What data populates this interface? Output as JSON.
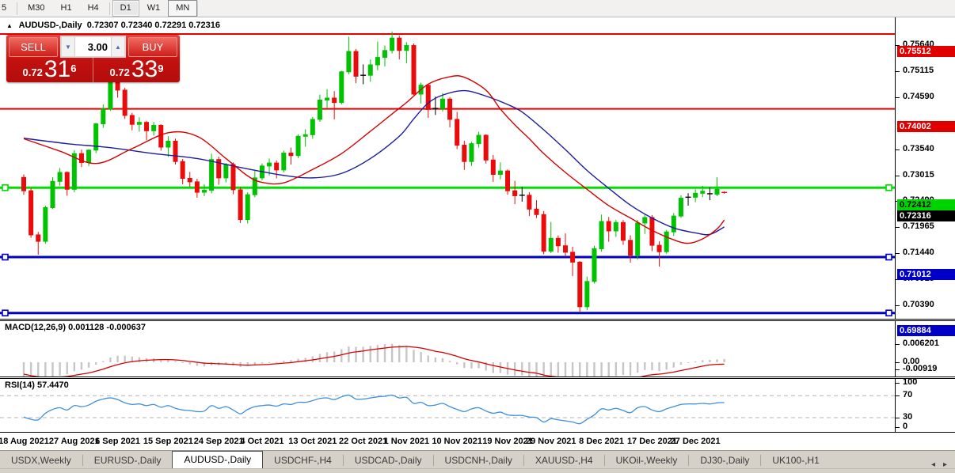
{
  "toolbar": {
    "buttons": [
      "5",
      "M30",
      "H1",
      "H4",
      "D1",
      "W1",
      "MN"
    ],
    "active": "D1",
    "boxed": "MN",
    "separators_after": [
      "5",
      "H4"
    ]
  },
  "chart": {
    "title": {
      "collapse_icon": "▲",
      "symbol": "AUDUSD-,Daily",
      "ohlc": "0.72307 0.72340 0.72291 0.72316"
    },
    "price_axis": {
      "ticks": [
        "0.75640",
        "0.75115",
        "0.74590",
        "0.73540",
        "0.73015",
        "0.72490",
        "0.71965",
        "0.71440",
        "0.70915",
        "0.70390"
      ],
      "badges": [
        {
          "text": "0.75512",
          "value": 0.75512,
          "bg": "#e00000",
          "fg": "#ffffff"
        },
        {
          "text": "0.74002",
          "value": 0.74002,
          "bg": "#e00000",
          "fg": "#ffffff"
        },
        {
          "text": "0.72412",
          "value": 0.72412,
          "bg": "#00d400",
          "fg": "#000000"
        },
        {
          "text": "0.72316",
          "value": 0.72316,
          "bg": "#000000",
          "fg": "#ffffff"
        },
        {
          "text": "0.71012",
          "value": 0.71012,
          "bg": "#0000c8",
          "fg": "#ffffff"
        },
        {
          "text": "0.69884",
          "value": 0.69884,
          "bg": "#0000c8",
          "fg": "#ffffff"
        }
      ]
    }
  },
  "trade": {
    "sell_label": "SELL",
    "buy_label": "BUY",
    "volume": "3.00",
    "spin_down": "▼",
    "spin_up": "▲",
    "sell": {
      "prefix": "0.72",
      "big": "31",
      "sup": "6"
    },
    "buy": {
      "prefix": "0.72",
      "big": "33",
      "sup": "9"
    }
  },
  "macd_panel": {
    "label": "MACD(12,26,9) 0.001128 -0.000637",
    "axis": [
      {
        "label": "0.006201",
        "value": 0.006201
      },
      {
        "label": "0.00",
        "value": 0.0
      },
      {
        "label": "-0.00919",
        "value": -0.00919
      }
    ]
  },
  "rsi_panel": {
    "label": "RSI(14) 57.4470",
    "axis": [
      {
        "label": "100",
        "value": 100
      },
      {
        "label": "70",
        "value": 70
      },
      {
        "label": "30",
        "value": 30
      },
      {
        "label": "0",
        "value": 0
      }
    ],
    "levels": [
      70,
      30
    ]
  },
  "tabs": {
    "items": [
      "USDX,Weekly",
      "EURUSD-,Daily",
      "AUDUSD-,Daily",
      "USDCHF-,H4",
      "USDCAD-,Daily",
      "USDCNH-,Daily",
      "XAUUSD-,H4",
      "UKOil-,Weekly",
      "DJ30-,Daily",
      "UK100-,H1"
    ],
    "active_index": 2,
    "nav_left": "◂",
    "nav_right": "▸"
  },
  "chart_data": {
    "type": "candlestick",
    "symbol": "AUDUSD-",
    "timeframe": "Daily",
    "ylim": [
      0.696,
      0.757
    ],
    "current_bar": {
      "open": 0.72307,
      "high": 0.7234,
      "low": 0.72291,
      "close": 0.72316
    },
    "x_labels": [
      {
        "bar": 0,
        "label": "18 Aug 2021"
      },
      {
        "bar": 7,
        "label": "27 Aug 2021"
      },
      {
        "bar": 13,
        "label": "6 Sep 2021"
      },
      {
        "bar": 20,
        "label": "15 Sep 2021"
      },
      {
        "bar": 27,
        "label": "24 Sep 2021"
      },
      {
        "bar": 33,
        "label": "4 Oct 2021"
      },
      {
        "bar": 40,
        "label": "13 Oct 2021"
      },
      {
        "bar": 47,
        "label": "22 Oct 2021"
      },
      {
        "bar": 53,
        "label": "1 Nov 2021"
      },
      {
        "bar": 60,
        "label": "10 Nov 2021"
      },
      {
        "bar": 67,
        "label": "19 Nov 2021"
      },
      {
        "bar": 73,
        "label": "29 Nov 2021"
      },
      {
        "bar": 80,
        "label": "8 Dec 2021"
      },
      {
        "bar": 87,
        "label": "17 Dec 2021"
      },
      {
        "bar": 93,
        "label": "27 Dec 2021"
      }
    ],
    "hlines": [
      {
        "price": 0.75512,
        "color": "#e60000",
        "width": 2,
        "handles": false
      },
      {
        "price": 0.74002,
        "color": "#e60000",
        "width": 2,
        "handles": false
      },
      {
        "price": 0.72412,
        "color": "#00dd00",
        "width": 3,
        "handles": true
      },
      {
        "price": 0.71012,
        "color": "#0000c8",
        "width": 3,
        "handles": true
      },
      {
        "price": 0.69884,
        "color": "#0000c8",
        "width": 3,
        "handles": true
      }
    ],
    "candles": [
      [
        0.7262,
        0.7268,
        0.7227,
        0.7235
      ],
      [
        0.7235,
        0.724,
        0.714,
        0.7146
      ],
      [
        0.7146,
        0.7152,
        0.7106,
        0.7133
      ],
      [
        0.7133,
        0.7205,
        0.7128,
        0.7201
      ],
      [
        0.7201,
        0.7262,
        0.7198,
        0.7254
      ],
      [
        0.7254,
        0.7281,
        0.7245,
        0.7272
      ],
      [
        0.7272,
        0.7274,
        0.7225,
        0.7238
      ],
      [
        0.7238,
        0.7317,
        0.7232,
        0.731
      ],
      [
        0.731,
        0.7318,
        0.7283,
        0.7292
      ],
      [
        0.7292,
        0.7319,
        0.7285,
        0.7317
      ],
      [
        0.7317,
        0.7372,
        0.7311,
        0.737
      ],
      [
        0.737,
        0.7409,
        0.7362,
        0.74
      ],
      [
        0.74,
        0.7478,
        0.7396,
        0.7457
      ],
      [
        0.7457,
        0.7462,
        0.7423,
        0.7438
      ],
      [
        0.7438,
        0.7443,
        0.738,
        0.7387
      ],
      [
        0.7387,
        0.7392,
        0.7357,
        0.7369
      ],
      [
        0.7369,
        0.7383,
        0.7354,
        0.7373
      ],
      [
        0.7373,
        0.7376,
        0.7337,
        0.7356
      ],
      [
        0.7356,
        0.7374,
        0.7346,
        0.7367
      ],
      [
        0.7367,
        0.7369,
        0.7316,
        0.7323
      ],
      [
        0.7323,
        0.7345,
        0.7303,
        0.7335
      ],
      [
        0.7335,
        0.734,
        0.7288,
        0.7294
      ],
      [
        0.7294,
        0.7299,
        0.7248,
        0.726
      ],
      [
        0.726,
        0.7273,
        0.7243,
        0.7253
      ],
      [
        0.7253,
        0.7259,
        0.7221,
        0.7232
      ],
      [
        0.7232,
        0.7248,
        0.7224,
        0.7236
      ],
      [
        0.7236,
        0.731,
        0.723,
        0.7298
      ],
      [
        0.7298,
        0.7304,
        0.7247,
        0.7261
      ],
      [
        0.7261,
        0.7291,
        0.7252,
        0.7288
      ],
      [
        0.7288,
        0.7292,
        0.7228,
        0.7237
      ],
      [
        0.7237,
        0.7242,
        0.717,
        0.7177
      ],
      [
        0.7177,
        0.7232,
        0.7169,
        0.7227
      ],
      [
        0.7227,
        0.7275,
        0.7222,
        0.7261
      ],
      [
        0.7261,
        0.729,
        0.7256,
        0.7285
      ],
      [
        0.7285,
        0.73,
        0.7266,
        0.7291
      ],
      [
        0.7291,
        0.7296,
        0.726,
        0.7277
      ],
      [
        0.7277,
        0.7316,
        0.7272,
        0.7311
      ],
      [
        0.7311,
        0.7322,
        0.7288,
        0.7306
      ],
      [
        0.7306,
        0.7349,
        0.7301,
        0.7345
      ],
      [
        0.7345,
        0.7359,
        0.7324,
        0.7348
      ],
      [
        0.7348,
        0.7384,
        0.734,
        0.7379
      ],
      [
        0.7379,
        0.7429,
        0.7374,
        0.7418
      ],
      [
        0.7418,
        0.744,
        0.7402,
        0.7422
      ],
      [
        0.7422,
        0.7436,
        0.7379,
        0.7413
      ],
      [
        0.7413,
        0.7477,
        0.7409,
        0.7475
      ],
      [
        0.7475,
        0.7546,
        0.747,
        0.7516
      ],
      [
        0.7516,
        0.7521,
        0.7452,
        0.7466
      ],
      [
        0.7466,
        0.749,
        0.745,
        0.7468
      ],
      [
        0.7468,
        0.75,
        0.7455,
        0.7489
      ],
      [
        0.7489,
        0.7536,
        0.7478,
        0.7504
      ],
      [
        0.7504,
        0.7528,
        0.7486,
        0.7518
      ],
      [
        0.7518,
        0.7556,
        0.7512,
        0.7543
      ],
      [
        0.7543,
        0.7548,
        0.75,
        0.7518
      ],
      [
        0.7518,
        0.7535,
        0.7492,
        0.7528
      ],
      [
        0.7528,
        0.7532,
        0.7428,
        0.743
      ],
      [
        0.743,
        0.7453,
        0.7411,
        0.7448
      ],
      [
        0.7448,
        0.7449,
        0.7382,
        0.7399
      ],
      [
        0.7399,
        0.7425,
        0.7388,
        0.7401
      ],
      [
        0.7401,
        0.7432,
        0.7395,
        0.742
      ],
      [
        0.742,
        0.7424,
        0.7363,
        0.7379
      ],
      [
        0.7379,
        0.7394,
        0.7319,
        0.7327
      ],
      [
        0.7327,
        0.7336,
        0.7277,
        0.7294
      ],
      [
        0.7294,
        0.7334,
        0.7285,
        0.733
      ],
      [
        0.733,
        0.7354,
        0.7322,
        0.7347
      ],
      [
        0.7347,
        0.7349,
        0.729,
        0.7297
      ],
      [
        0.7297,
        0.7307,
        0.7253,
        0.7268
      ],
      [
        0.7268,
        0.7292,
        0.7258,
        0.7275
      ],
      [
        0.7275,
        0.7278,
        0.7227,
        0.7235
      ],
      [
        0.7235,
        0.7255,
        0.7208,
        0.7225
      ],
      [
        0.7225,
        0.7243,
        0.7213,
        0.7226
      ],
      [
        0.7226,
        0.7232,
        0.7184,
        0.7198
      ],
      [
        0.7198,
        0.7216,
        0.718,
        0.7187
      ],
      [
        0.7187,
        0.7194,
        0.7107,
        0.7113
      ],
      [
        0.7113,
        0.7172,
        0.7109,
        0.7139
      ],
      [
        0.7139,
        0.7145,
        0.711,
        0.7124
      ],
      [
        0.7124,
        0.7149,
        0.7102,
        0.7111
      ],
      [
        0.7111,
        0.7122,
        0.7063,
        0.7091
      ],
      [
        0.7091,
        0.7093,
        0.6989,
        0.7001
      ],
      [
        0.7001,
        0.7062,
        0.6994,
        0.7052
      ],
      [
        0.7052,
        0.7124,
        0.7048,
        0.7118
      ],
      [
        0.7118,
        0.7187,
        0.7112,
        0.7173
      ],
      [
        0.7173,
        0.7182,
        0.7132,
        0.7154
      ],
      [
        0.7154,
        0.7176,
        0.7142,
        0.7171
      ],
      [
        0.7171,
        0.7176,
        0.7126,
        0.7135
      ],
      [
        0.7135,
        0.7145,
        0.709,
        0.7105
      ],
      [
        0.7105,
        0.7176,
        0.7096,
        0.717
      ],
      [
        0.717,
        0.7187,
        0.7148,
        0.7181
      ],
      [
        0.7181,
        0.7186,
        0.7113,
        0.7125
      ],
      [
        0.7125,
        0.7133,
        0.7082,
        0.7112
      ],
      [
        0.7112,
        0.7156,
        0.7108,
        0.7152
      ],
      [
        0.7152,
        0.719,
        0.7144,
        0.7184
      ],
      [
        0.7184,
        0.7226,
        0.718,
        0.722
      ],
      [
        0.722,
        0.723,
        0.7205,
        0.7222
      ],
      [
        0.7222,
        0.7238,
        0.7212,
        0.723
      ],
      [
        0.723,
        0.7245,
        0.7222,
        0.7234
      ],
      [
        0.723,
        0.7242,
        0.7216,
        0.7229
      ],
      [
        0.7228,
        0.7262,
        0.7224,
        0.7238
      ],
      [
        0.72307,
        0.7234,
        0.72291,
        0.72316
      ]
    ],
    "ma_fast_color": "#d40000",
    "ma_slow_color": "#1c1c9e",
    "ma_fast_anchors": [
      [
        0,
        0.734
      ],
      [
        5,
        0.7315
      ],
      [
        10,
        0.729
      ],
      [
        15,
        0.732
      ],
      [
        20,
        0.7352
      ],
      [
        24,
        0.7345
      ],
      [
        28,
        0.73
      ],
      [
        31,
        0.7265
      ],
      [
        33,
        0.7252
      ],
      [
        36,
        0.7251
      ],
      [
        40,
        0.7278
      ],
      [
        44,
        0.731
      ],
      [
        48,
        0.7355
      ],
      [
        51,
        0.739
      ],
      [
        53,
        0.7413
      ],
      [
        56,
        0.745
      ],
      [
        59,
        0.7465
      ],
      [
        61,
        0.7464
      ],
      [
        64,
        0.7438
      ],
      [
        66,
        0.74
      ],
      [
        68,
        0.7368
      ],
      [
        70,
        0.734
      ],
      [
        72,
        0.731
      ],
      [
        75,
        0.7272
      ],
      [
        78,
        0.7238
      ],
      [
        81,
        0.7205
      ],
      [
        84,
        0.718
      ],
      [
        87,
        0.7155
      ],
      [
        90,
        0.7136
      ],
      [
        92,
        0.7129
      ],
      [
        94,
        0.7138
      ],
      [
        96,
        0.7158
      ],
      [
        97,
        0.7176
      ]
    ],
    "ma_slow_anchors": [
      [
        0,
        0.7341
      ],
      [
        6,
        0.733
      ],
      [
        12,
        0.7322
      ],
      [
        18,
        0.731
      ],
      [
        24,
        0.73
      ],
      [
        30,
        0.7282
      ],
      [
        36,
        0.7266
      ],
      [
        40,
        0.7261
      ],
      [
        44,
        0.727
      ],
      [
        48,
        0.73
      ],
      [
        52,
        0.7345
      ],
      [
        54,
        0.738
      ],
      [
        56,
        0.7412
      ],
      [
        58,
        0.7428
      ],
      [
        61,
        0.7437
      ],
      [
        64,
        0.7426
      ],
      [
        67,
        0.7409
      ],
      [
        69,
        0.7394
      ],
      [
        72,
        0.7358
      ],
      [
        75,
        0.7318
      ],
      [
        78,
        0.7276
      ],
      [
        81,
        0.724
      ],
      [
        84,
        0.7206
      ],
      [
        87,
        0.718
      ],
      [
        90,
        0.716
      ],
      [
        93,
        0.715
      ],
      [
        95,
        0.7147
      ],
      [
        97,
        0.7162
      ]
    ],
    "macd": {
      "histogram_color": "#c6c6c6",
      "signal_color": "#d40000",
      "histogram": [
        -0.005,
        -0.006,
        -0.0066,
        -0.006,
        -0.0052,
        -0.0045,
        -0.004,
        -0.003,
        -0.0025,
        -0.0018,
        -0.0008,
        0.0004,
        0.0016,
        0.0022,
        0.0022,
        0.0019,
        0.0017,
        0.0014,
        0.0013,
        0.001,
        0.0009,
        0.0004,
        -0.0002,
        -0.0007,
        -0.0012,
        -0.0014,
        -0.001,
        -0.001,
        -0.0008,
        -0.0011,
        -0.0016,
        -0.0013,
        -0.0008,
        -0.0004,
        0.0,
        0.0001,
        0.0005,
        0.0007,
        0.0012,
        0.0015,
        0.002,
        0.0028,
        0.0034,
        0.0036,
        0.0044,
        0.0053,
        0.0052,
        0.0052,
        0.0055,
        0.0058,
        0.0061,
        0.006201,
        0.0058,
        0.0056,
        0.0042,
        0.0035,
        0.0023,
        0.0016,
        0.0014,
        0.0005,
        -0.0007,
        -0.0019,
        -0.0021,
        -0.002,
        -0.0028,
        -0.0036,
        -0.0036,
        -0.0042,
        -0.0045,
        -0.0044,
        -0.0048,
        -0.0051,
        -0.0065,
        -0.0063,
        -0.0065,
        -0.0069,
        -0.0078,
        -0.00919,
        -0.0088,
        -0.0076,
        -0.0062,
        -0.0055,
        -0.0046,
        -0.0043,
        -0.0045,
        -0.0035,
        -0.0026,
        -0.0027,
        -0.003,
        -0.0025,
        -0.0018,
        -0.0008,
        -0.0002,
        0.0003,
        0.0007,
        0.0008,
        0.001,
        0.001128
      ],
      "signal": [
        -0.004,
        -0.0045,
        -0.0049,
        -0.0051,
        -0.0051,
        -0.005,
        -0.0048,
        -0.0044,
        -0.004,
        -0.0036,
        -0.003,
        -0.0023,
        -0.0015,
        -0.0008,
        -0.0002,
        0.0002,
        0.0005,
        0.0007,
        0.0008,
        0.0009,
        0.0009,
        0.0008,
        0.0006,
        0.0003,
        0.0,
        -0.0003,
        -0.0004,
        -0.0005,
        -0.0006,
        -0.0007,
        -0.0009,
        -0.001,
        -0.0009,
        -0.0008,
        -0.0007,
        -0.0005,
        -0.0003,
        -0.0001,
        0.0002,
        0.0005,
        0.0008,
        0.0012,
        0.0016,
        0.002,
        0.0025,
        0.0031,
        0.0035,
        0.0038,
        0.0042,
        0.0045,
        0.0048,
        0.0051,
        0.0052,
        0.0053,
        0.0051,
        0.0048,
        0.0043,
        0.0037,
        0.0033,
        0.0027,
        0.002,
        0.0012,
        0.0006,
        0.0001,
        -0.0005,
        -0.0011,
        -0.0016,
        -0.0021,
        -0.0026,
        -0.003,
        -0.0034,
        -0.0037,
        -0.0043,
        -0.0047,
        -0.005,
        -0.0054,
        -0.0059,
        -0.0066,
        -0.007,
        -0.0071,
        -0.0069,
        -0.0066,
        -0.0062,
        -0.0058,
        -0.0056,
        -0.0052,
        -0.0046,
        -0.0042,
        -0.004,
        -0.0037,
        -0.0033,
        -0.0028,
        -0.0023,
        -0.0018,
        -0.0013,
        -0.0009,
        -0.0007,
        -0.000637
      ]
    },
    "rsi": {
      "line_color": "#3f8fdd",
      "values": [
        31,
        27,
        26,
        38,
        45,
        48,
        44,
        52,
        50,
        53,
        60,
        64,
        66,
        63,
        57,
        54,
        55,
        52,
        54,
        49,
        52,
        47,
        44,
        43,
        41,
        42,
        52,
        47,
        50,
        44,
        37,
        45,
        50,
        52,
        53,
        51,
        55,
        54,
        58,
        58,
        61,
        65,
        66,
        63,
        68,
        71,
        64,
        64,
        66,
        68,
        69,
        71,
        66,
        67,
        56,
        58,
        52,
        53,
        56,
        50,
        45,
        41,
        46,
        48,
        42,
        38,
        40,
        35,
        34,
        34,
        31,
        30,
        22,
        28,
        26,
        24,
        22,
        19,
        27,
        35,
        46,
        44,
        47,
        43,
        39,
        48,
        50,
        44,
        41,
        46,
        50,
        54,
        55,
        55,
        56,
        55,
        57,
        57.447
      ]
    },
    "colors": {
      "bull": "#00c200",
      "bear": "#ea0b0b",
      "doji": "#000000",
      "current_marker": "#ea0b0b"
    }
  }
}
